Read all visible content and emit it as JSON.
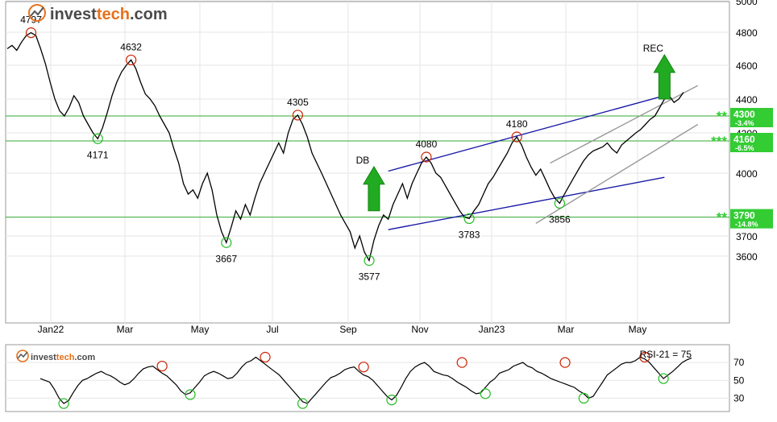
{
  "brand": {
    "prefix": "invest",
    "suffix": "tech",
    "domain": ".com",
    "accent": "#e8701a",
    "dark": "#4a4a4a"
  },
  "chart_data": [
    {
      "type": "line",
      "panel": "price",
      "grid": true,
      "ylim": [
        3300,
        5000
      ],
      "y_ticks": [
        "3600",
        "3700",
        "4000",
        "4200",
        "4400",
        "4600",
        "4800",
        "5000"
      ],
      "x_ticks": [
        "Jan22",
        "Mar",
        "May",
        "Jul",
        "Sep",
        "Nov",
        "Jan23",
        "Mar",
        "May"
      ],
      "series": [
        {
          "values": [
            4700,
            4720,
            4690,
            4740,
            4780,
            4797,
            4780,
            4700,
            4610,
            4500,
            4400,
            4330,
            4300,
            4350,
            4420,
            4380,
            4300,
            4250,
            4200,
            4171,
            4230,
            4320,
            4420,
            4500,
            4560,
            4600,
            4632,
            4580,
            4500,
            4430,
            4400,
            4360,
            4300,
            4250,
            4200,
            4120,
            4050,
            3950,
            3900,
            3920,
            3880,
            3950,
            4000,
            3920,
            3800,
            3720,
            3667,
            3740,
            3820,
            3780,
            3850,
            3800,
            3880,
            3950,
            4000,
            4050,
            4100,
            4150,
            4100,
            4200,
            4280,
            4305,
            4250,
            4180,
            4100,
            4050,
            4000,
            3950,
            3900,
            3850,
            3800,
            3760,
            3720,
            3640,
            3700,
            3620,
            3577,
            3680,
            3750,
            3800,
            3780,
            3850,
            3900,
            3950,
            3880,
            3950,
            4000,
            4050,
            4080,
            4050,
            4000,
            3980,
            3940,
            3900,
            3860,
            3820,
            3790,
            3783,
            3820,
            3850,
            3900,
            3950,
            3980,
            4020,
            4060,
            4100,
            4150,
            4180,
            4140,
            4080,
            4030,
            3990,
            4020,
            3970,
            3920,
            3880,
            3856,
            3900,
            3940,
            3980,
            4020,
            4060,
            4090,
            4110,
            4120,
            4130,
            4150,
            4120,
            4100,
            4140,
            4160,
            4180,
            4200,
            4220,
            4250,
            4280,
            4300,
            4350,
            4400,
            4420,
            4380,
            4400,
            4440
          ]
        }
      ],
      "highs": [
        {
          "label": "4797",
          "x": 5,
          "y": 4797
        },
        {
          "label": "4632",
          "x": 26,
          "y": 4632
        },
        {
          "label": "4305",
          "x": 61,
          "y": 4305
        },
        {
          "label": "4080",
          "x": 88,
          "y": 4080
        },
        {
          "label": "4180",
          "x": 107,
          "y": 4180
        }
      ],
      "lows": [
        {
          "label": "4171",
          "x": 19,
          "y": 4171
        },
        {
          "label": "3667",
          "x": 46,
          "y": 3667
        },
        {
          "label": "3577",
          "x": 76,
          "y": 3577
        },
        {
          "label": "3783",
          "x": 97,
          "y": 3783
        },
        {
          "label": "3856",
          "x": 116,
          "y": 3856
        }
      ],
      "levels": [
        {
          "value": 4300,
          "stars": "**",
          "label": "4300",
          "pct": "-3.4%"
        },
        {
          "value": 4160,
          "stars": "***",
          "label": "4160",
          "pct": "-6.5%"
        },
        {
          "value": 3790,
          "stars": "**",
          "label": "3790",
          "pct": "-14.8%"
        }
      ],
      "channel_blue": {
        "upper": [
          [
            80,
            4010
          ],
          [
            138,
            4420
          ]
        ],
        "lower": [
          [
            80,
            3730
          ],
          [
            138,
            3980
          ]
        ]
      },
      "channel_gray": {
        "upper": [
          [
            114,
            4050
          ],
          [
            145,
            4480
          ]
        ],
        "lower": [
          [
            111,
            3760
          ],
          [
            145,
            4250
          ]
        ]
      },
      "signals": [
        {
          "label": "DB",
          "x": 77,
          "y": 3820,
          "direction": "up",
          "color": "#22aa22"
        },
        {
          "label": "REC",
          "x": 138,
          "y": 4400,
          "direction": "up",
          "color": "#22aa22"
        }
      ],
      "colors": {
        "price": "#000000",
        "support": "#22bb22",
        "resistance": "#cc2200",
        "channel": "#1a1aa6",
        "level_line": "#33aa33",
        "level_box": "#33cc33"
      }
    },
    {
      "type": "line",
      "panel": "rsi",
      "label": "RSI-21 = 75",
      "ylim": [
        15,
        90
      ],
      "y_ticks": [
        "30",
        "50",
        "70"
      ],
      "series": [
        {
          "values": [
            52,
            50,
            48,
            40,
            30,
            24,
            27,
            36,
            44,
            50,
            52,
            55,
            58,
            60,
            57,
            55,
            52,
            48,
            45,
            47,
            52,
            58,
            63,
            65,
            66,
            62,
            58,
            55,
            50,
            45,
            38,
            34,
            36,
            42,
            48,
            55,
            58,
            60,
            58,
            55,
            52,
            53,
            58,
            65,
            70,
            72,
            76,
            72,
            68,
            64,
            60,
            56,
            50,
            44,
            38,
            32,
            26,
            24,
            30,
            36,
            42,
            48,
            53,
            55,
            58,
            62,
            64,
            65,
            60,
            56,
            54,
            50,
            44,
            38,
            32,
            28,
            33,
            42,
            52,
            60,
            65,
            68,
            70,
            66,
            60,
            58,
            56,
            55,
            52,
            48,
            45,
            42,
            38,
            35,
            36,
            42,
            48,
            52,
            58,
            60,
            62,
            66,
            68,
            70,
            66,
            64,
            60,
            58,
            55,
            52,
            50,
            48,
            46,
            44,
            42,
            38,
            35,
            30,
            32,
            40,
            48,
            56,
            60,
            64,
            68,
            70,
            70,
            72,
            76,
            74,
            70,
            64,
            58,
            52,
            56,
            60,
            65,
            70,
            73,
            75
          ]
        }
      ],
      "highs": [
        {
          "x": 26,
          "y": 66
        },
        {
          "x": 48,
          "y": 76
        },
        {
          "x": 69,
          "y": 65
        },
        {
          "x": 90,
          "y": 70
        },
        {
          "x": 112,
          "y": 70
        },
        {
          "x": 129,
          "y": 76
        }
      ],
      "lows": [
        {
          "x": 5,
          "y": 24
        },
        {
          "x": 32,
          "y": 34
        },
        {
          "x": 56,
          "y": 24
        },
        {
          "x": 75,
          "y": 28
        },
        {
          "x": 95,
          "y": 35
        },
        {
          "x": 116,
          "y": 30
        },
        {
          "x": 133,
          "y": 52
        }
      ]
    }
  ]
}
